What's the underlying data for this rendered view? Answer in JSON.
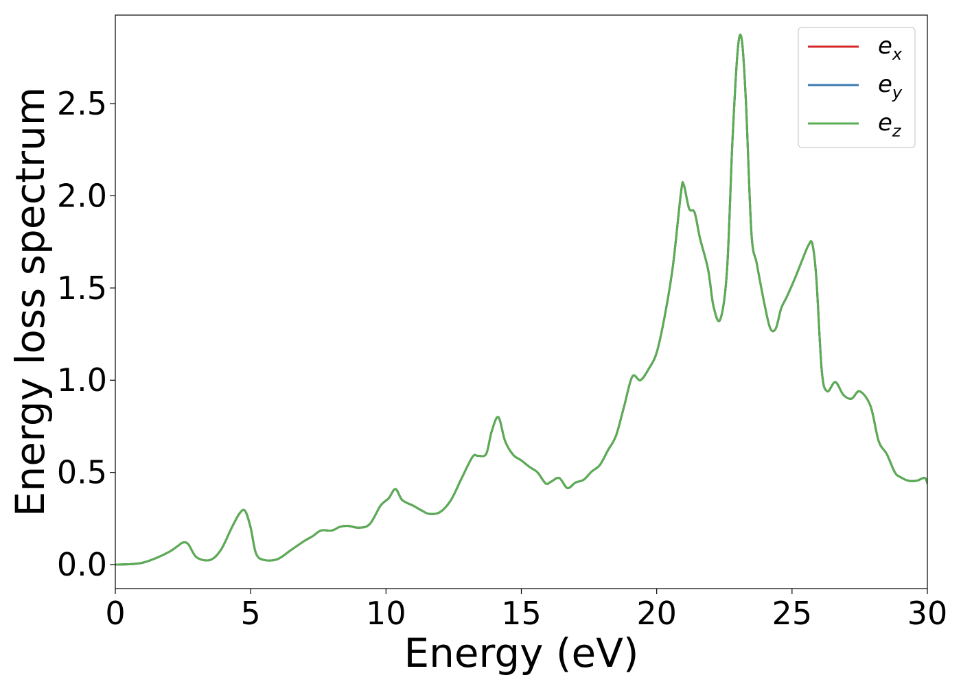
{
  "chart_data": {
    "type": "line",
    "title": "",
    "xlabel": "Energy (eV)",
    "ylabel": "Energy loss spectrum",
    "xlim": [
      0,
      30
    ],
    "ylim": [
      -0.13,
      2.98
    ],
    "xticks": [
      0,
      5,
      10,
      15,
      20,
      25,
      30
    ],
    "xtick_labels": [
      "0",
      "5",
      "10",
      "15",
      "20",
      "25",
      "30"
    ],
    "yticks": [
      0.0,
      0.5,
      1.0,
      1.5,
      2.0,
      2.5
    ],
    "ytick_labels": [
      "0.0",
      "0.5",
      "1.0",
      "1.5",
      "2.0",
      "2.5"
    ],
    "grid": false,
    "legend_position": "top-right",
    "series": [
      {
        "name": "e_x",
        "label_base": "e",
        "label_sub": "x",
        "color": "#d62728"
      },
      {
        "name": "e_y",
        "label_base": "e",
        "label_sub": "y",
        "color": "#3a7ab0"
      },
      {
        "name": "e_z",
        "label_base": "e",
        "label_sub": "z",
        "color": "#5aad52"
      }
    ],
    "x": [
      0,
      0.5,
      1.0,
      1.5,
      2.0,
      2.3,
      2.5,
      2.7,
      3.0,
      3.5,
      3.9,
      4.3,
      4.6,
      4.8,
      5.0,
      5.2,
      5.5,
      6.0,
      6.5,
      7.0,
      7.3,
      7.6,
      8.0,
      8.3,
      8.6,
      9.0,
      9.4,
      9.8,
      10.1,
      10.35,
      10.6,
      11.0,
      11.3,
      11.6,
      12.0,
      12.4,
      12.8,
      13.2,
      13.4,
      13.7,
      13.9,
      14.15,
      14.4,
      14.7,
      15.0,
      15.3,
      15.6,
      15.9,
      16.1,
      16.4,
      16.7,
      17.0,
      17.3,
      17.6,
      17.9,
      18.2,
      18.5,
      18.8,
      19.1,
      19.4,
      19.7,
      20.0,
      20.3,
      20.6,
      20.9,
      21.0,
      21.2,
      21.4,
      21.6,
      21.9,
      22.1,
      22.35,
      22.6,
      22.8,
      23.0,
      23.15,
      23.3,
      23.5,
      23.7,
      24.0,
      24.2,
      24.4,
      24.6,
      24.8,
      25.1,
      25.4,
      25.6,
      25.75,
      25.9,
      26.1,
      26.3,
      26.6,
      26.9,
      27.2,
      27.5,
      27.9,
      28.2,
      28.5,
      28.8,
      29.0,
      29.3,
      29.6,
      29.9,
      30.0
    ],
    "values": [
      0.0,
      0.002,
      0.01,
      0.035,
      0.07,
      0.1,
      0.12,
      0.11,
      0.04,
      0.025,
      0.08,
      0.2,
      0.28,
      0.29,
      0.2,
      0.06,
      0.025,
      0.03,
      0.08,
      0.13,
      0.155,
      0.185,
      0.185,
      0.205,
      0.21,
      0.2,
      0.22,
      0.32,
      0.36,
      0.41,
      0.35,
      0.32,
      0.295,
      0.275,
      0.285,
      0.35,
      0.47,
      0.585,
      0.59,
      0.6,
      0.72,
      0.8,
      0.67,
      0.595,
      0.565,
      0.53,
      0.5,
      0.44,
      0.45,
      0.47,
      0.415,
      0.445,
      0.46,
      0.505,
      0.54,
      0.62,
      0.7,
      0.86,
      1.02,
      1.0,
      1.06,
      1.15,
      1.35,
      1.62,
      2.02,
      2.06,
      1.93,
      1.91,
      1.77,
      1.6,
      1.4,
      1.33,
      1.6,
      2.3,
      2.8,
      2.84,
      2.5,
      1.8,
      1.63,
      1.4,
      1.28,
      1.28,
      1.39,
      1.45,
      1.55,
      1.66,
      1.73,
      1.74,
      1.55,
      1.05,
      0.94,
      0.99,
      0.92,
      0.9,
      0.94,
      0.86,
      0.67,
      0.6,
      0.5,
      0.475,
      0.455,
      0.455,
      0.47,
      0.44
    ]
  }
}
